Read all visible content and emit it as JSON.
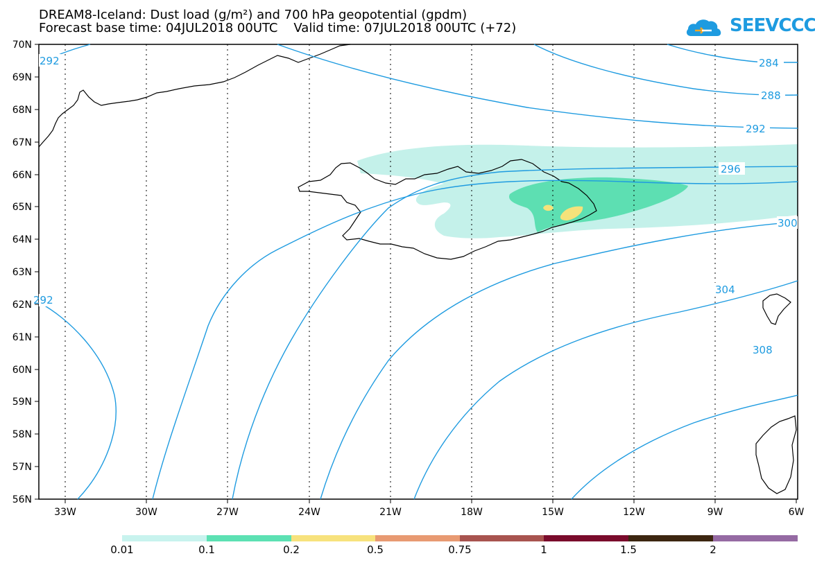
{
  "header": {
    "title_line1": "DREAM8-Iceland: Dust load (g/m²) and 700 hPa geopotential (gpdm)",
    "title_line2": "Forecast base time: 04JUL2018 00UTC    Valid time: 07JUL2018 00UTC (+72)",
    "logo_text": "SEEVCCC"
  },
  "map": {
    "lat_labels": [
      "70N",
      "69N",
      "68N",
      "67N",
      "66N",
      "65N",
      "64N",
      "63N",
      "62N",
      "61N",
      "60N",
      "59N",
      "58N",
      "57N",
      "56N"
    ],
    "lon_labels": [
      "33W",
      "30W",
      "27W",
      "24W",
      "21W",
      "18W",
      "15W",
      "12W",
      "9W",
      "6W"
    ],
    "contour_labels": [
      "292",
      "284",
      "288",
      "292",
      "296",
      "300",
      "304",
      "308",
      "292"
    ],
    "colors": {
      "contour": "#1e9be0",
      "dust_low": "#c2f0e8",
      "dust_mid": "#5ddfb2",
      "dust_high": "#f5e27a",
      "coast": "#000000",
      "grid": "#000000"
    }
  },
  "colorbar": {
    "labels": [
      "0.01",
      "0.1",
      "0.2",
      "0.5",
      "0.75",
      "1",
      "1.5",
      "2"
    ],
    "colors": [
      "#c8f3ee",
      "#5ce1b3",
      "#f7e27d",
      "#e89a72",
      "#a8544f",
      "#7a0b2c",
      "#3c2610",
      "#956aa3"
    ]
  }
}
